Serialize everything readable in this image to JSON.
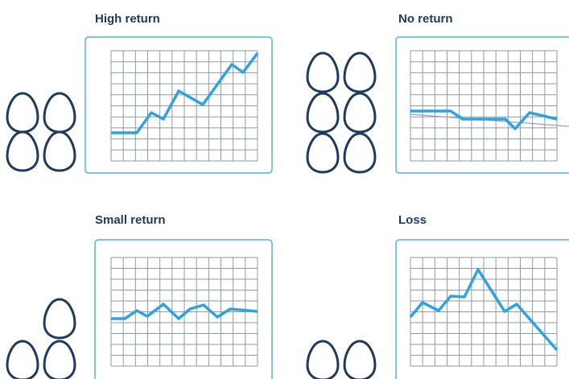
{
  "panels": [
    {
      "title": "High return"
    },
    {
      "title": "No return"
    },
    {
      "title": "Small return"
    },
    {
      "title": "Loss"
    }
  ]
}
